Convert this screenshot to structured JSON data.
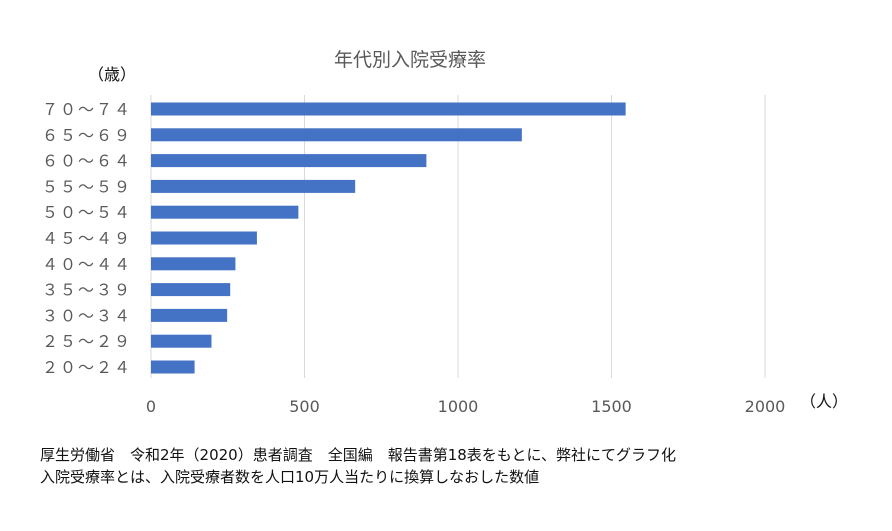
{
  "chart_data": {
    "type": "bar",
    "orientation": "horizontal",
    "title": "年代別入院受療率",
    "ylabel": "（歳）",
    "xlabel": "（人）",
    "categories": [
      "７０～７４",
      "６５～６９",
      "６０～６４",
      "５５～５９",
      "５０～５４",
      "４５～４９",
      "４０～４４",
      "３５～３９",
      "３０～３４",
      "２５～２９",
      "２０～２４"
    ],
    "values": [
      1546,
      1208,
      897,
      665,
      480,
      345,
      275,
      258,
      248,
      197,
      142
    ],
    "xlim": [
      0,
      2000
    ],
    "xticks": [
      0,
      500,
      1000,
      1500,
      2000
    ],
    "grid": true,
    "bar_color": "#4472C4"
  },
  "notes": {
    "line1": "厚生労働省　令和2年（2020）患者調査　全国編　報告書第18表をもとに、弊社にてグラフ化",
    "line2": "入院受療率とは、入院受療者数を人口10万人当たりに換算しなおした数値"
  }
}
